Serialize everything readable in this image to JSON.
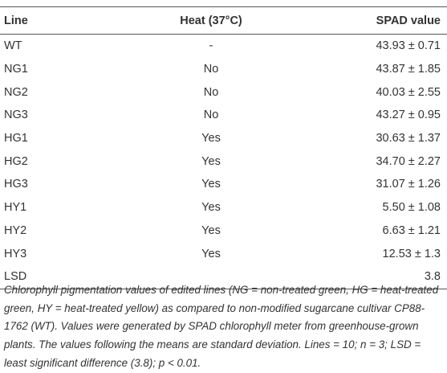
{
  "table": {
    "header": [
      "Line",
      "Heat (37°C)",
      "SPAD value"
    ],
    "rows": [
      [
        "WT",
        "-",
        "43.93 ± 0.71"
      ],
      [
        "NG1",
        "No",
        "43.87 ± 1.85"
      ],
      [
        "NG2",
        "No",
        "40.03 ± 2.55"
      ],
      [
        "NG3",
        "No",
        "43.27 ± 0.95"
      ],
      [
        "HG1",
        "Yes",
        "30.63 ± 1.37"
      ],
      [
        "HG2",
        "Yes",
        "34.70 ± 2.27"
      ],
      [
        "HG3",
        "Yes",
        "31.07 ± 1.26"
      ],
      [
        "HY1",
        "Yes",
        "5.50 ± 1.08"
      ],
      [
        "HY2",
        "Yes",
        "6.63 ± 1.21"
      ],
      [
        "HY3",
        "Yes",
        "12.53 ± 1.3"
      ],
      [
        "LSD",
        null,
        "3.8"
      ]
    ]
  },
  "caption": "Chlorophyll pigmentation values of edited lines (NG = non-treated green, HG = heat-treated green, HY = heat-treated yellow) as compared to non-modified sugarcane cultivar CP88-1762 (WT). Values were generated by SPAD chlorophyll meter from greenhouse-grown plants. The values following the means are standard deviation. Lines = 10; n = 3; LSD = least significant difference (3.8); p < 0.01."
}
